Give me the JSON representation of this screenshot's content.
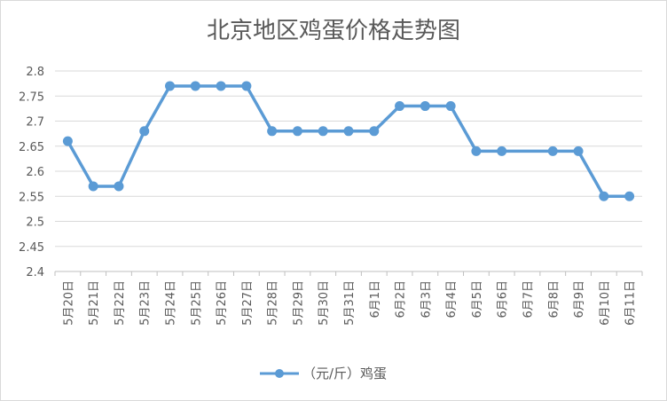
{
  "chart_data": {
    "type": "line",
    "title": "北京地区鸡蛋价格走势图",
    "categories": [
      "5月20日",
      "5月21日",
      "5月22日",
      "5月23日",
      "5月24日",
      "5月25日",
      "5月26日",
      "5月27日",
      "5月28日",
      "5月29日",
      "5月30日",
      "5月31日",
      "6月1日",
      "6月2日",
      "6月3日",
      "6月4日",
      "6月5日",
      "6月6日",
      "6月7日",
      "6月8日",
      "6月9日",
      "6月10日",
      "6月11日"
    ],
    "series": [
      {
        "name": "（元/斤）鸡蛋",
        "values": [
          2.66,
          2.57,
          2.57,
          2.68,
          2.77,
          2.77,
          2.77,
          2.77,
          2.68,
          2.68,
          2.68,
          2.68,
          2.68,
          2.73,
          2.73,
          2.73,
          2.64,
          2.64,
          2.64,
          2.64,
          2.64,
          2.55,
          2.55
        ],
        "missing_markers": [
          18
        ],
        "color": "#5b9bd5"
      }
    ],
    "ylim": [
      2.4,
      2.8
    ],
    "yticks": [
      "2.4",
      "2.45",
      "2.5",
      "2.55",
      "2.6",
      "2.65",
      "2.7",
      "2.75",
      "2.8"
    ],
    "grid": "horizontal",
    "legend": "bottom",
    "xlabel": "",
    "ylabel": ""
  }
}
